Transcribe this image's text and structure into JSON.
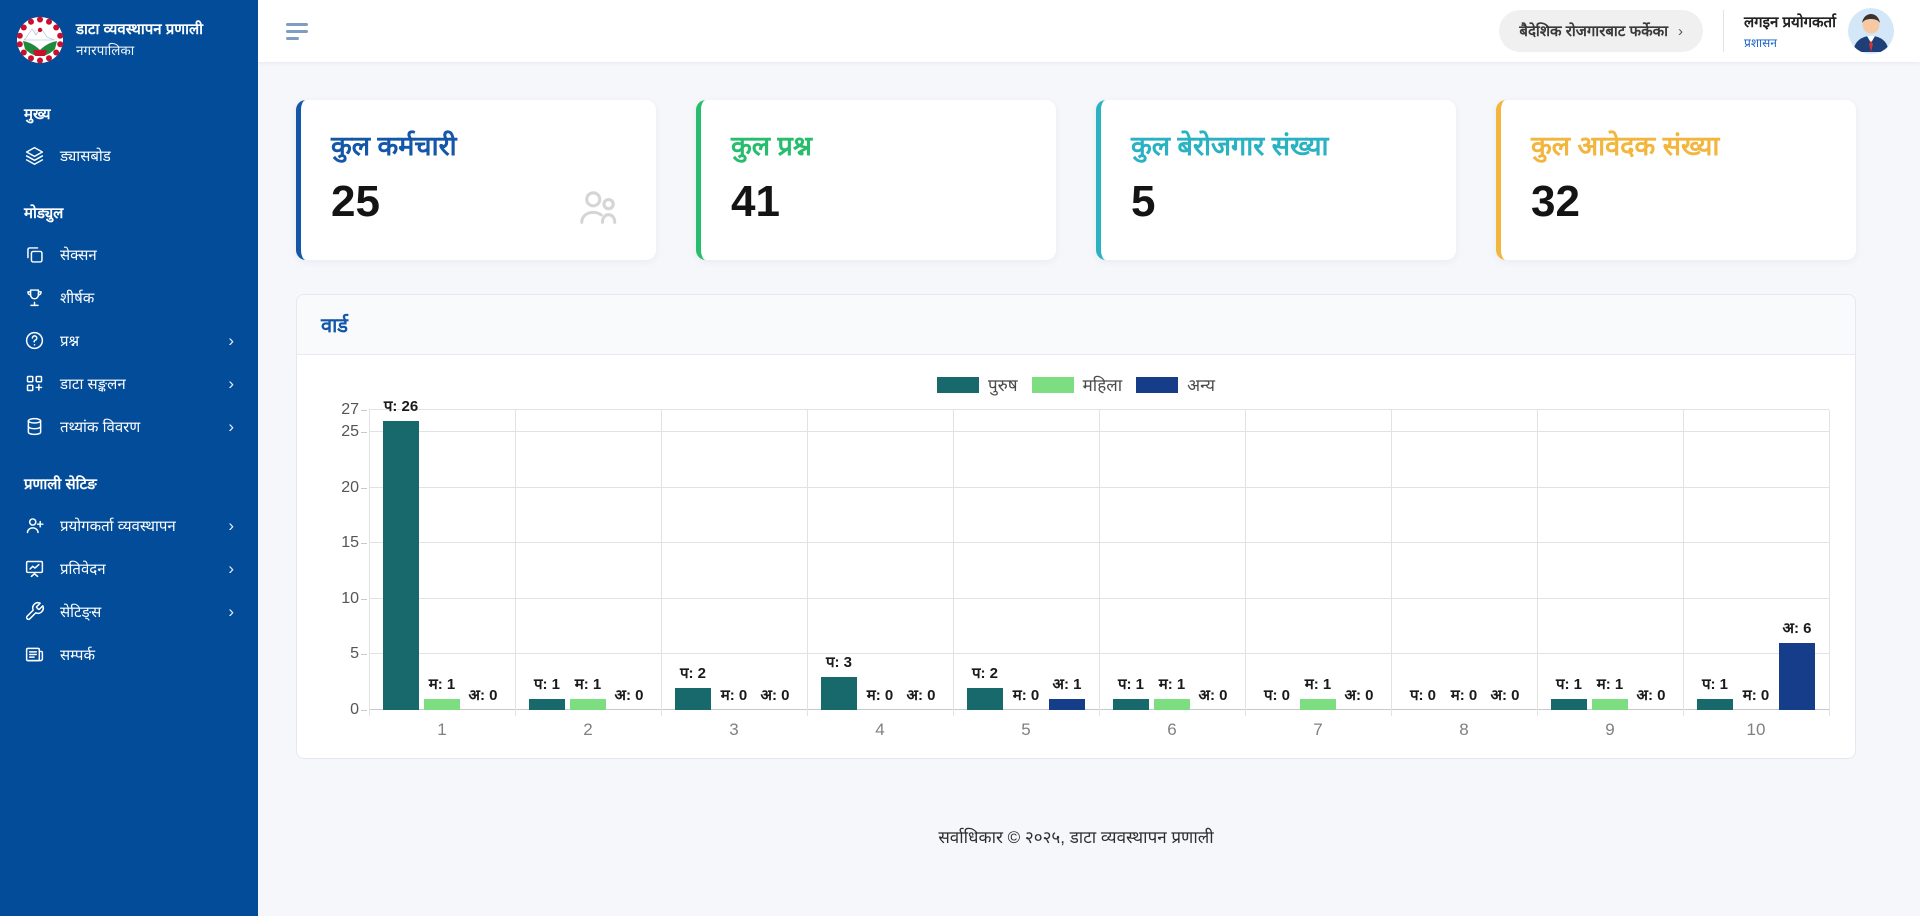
{
  "app": {
    "title": "डाटा व्यवस्थापन प्रणाली",
    "subtitle": "नगरपालिका"
  },
  "sidebar": {
    "sections": [
      {
        "header": "मुख्य",
        "items": [
          {
            "label": "ड्यासबोड",
            "icon": "layers-icon",
            "chevron": false
          }
        ]
      },
      {
        "header": "मोड्युल",
        "items": [
          {
            "label": "सेक्सन",
            "icon": "sections-copy-icon",
            "chevron": false
          },
          {
            "label": "शीर्षक",
            "icon": "trophy-icon",
            "chevron": false
          },
          {
            "label": "प्रश्न",
            "icon": "question-circle-icon",
            "chevron": true
          },
          {
            "label": "डाटा सङ्कलन",
            "icon": "grid-plus-icon",
            "chevron": true
          },
          {
            "label": "तथ्यांक विवरण",
            "icon": "database-icon",
            "chevron": true
          }
        ]
      },
      {
        "header": "प्रणाली सेटिङ",
        "items": [
          {
            "label": "प्रयोगकर्ता व्यवस्थापन",
            "icon": "user-plus-icon",
            "chevron": true
          },
          {
            "label": "प्रतिवेदन",
            "icon": "report-chart-icon",
            "chevron": true
          },
          {
            "label": "सेटिङ्स",
            "icon": "wrench-icon",
            "chevron": true
          },
          {
            "label": "सम्पर्क",
            "icon": "newspaper-icon",
            "chevron": false
          }
        ]
      }
    ]
  },
  "topbar": {
    "returnee_button": "बैदेशिक रोजगारबाट फर्केका",
    "chevron": "›",
    "user": {
      "name": "लगइन प्रयोगकर्ता",
      "role": "प्रशासन"
    }
  },
  "stats": [
    {
      "title": "कुल कर्मचारी",
      "value": "25",
      "color": "#1456a8",
      "icon": "users-icon"
    },
    {
      "title": "कुल प्रश्न",
      "value": "41",
      "color": "#27bd6d",
      "icon": ""
    },
    {
      "title": "कुल बेरोजगार संख्या",
      "value": "5",
      "color": "#2ab2c3",
      "icon": ""
    },
    {
      "title": "कुल आवेदक संख्या",
      "value": "32",
      "color": "#f2b63e",
      "icon": ""
    }
  ],
  "chart_card": {
    "title": "वार्ड"
  },
  "chart_data": {
    "type": "bar",
    "title": "वार्ड",
    "categories": [
      "1",
      "2",
      "3",
      "4",
      "5",
      "6",
      "7",
      "8",
      "9",
      "10"
    ],
    "series": [
      {
        "name": "पुरुष",
        "key": "male",
        "prefix": "प",
        "color": "#17696c",
        "values": [
          26,
          1,
          2,
          3,
          2,
          1,
          0,
          0,
          1,
          1
        ]
      },
      {
        "name": "महिला",
        "key": "female",
        "prefix": "म",
        "color": "#7ddd81",
        "values": [
          1,
          1,
          0,
          0,
          0,
          1,
          1,
          0,
          1,
          0
        ]
      },
      {
        "name": "अन्य",
        "key": "other",
        "prefix": "अ",
        "color": "#153d8a",
        "values": [
          0,
          0,
          0,
          0,
          1,
          0,
          0,
          0,
          0,
          6
        ]
      }
    ],
    "yticks": [
      0,
      5,
      10,
      15,
      20,
      25,
      27
    ],
    "ylim": [
      0,
      27
    ],
    "grid": true,
    "legend_position": "top",
    "label_format": "prefix: value"
  },
  "footer": {
    "copyright": "सर्वाधिकार © २०२५, डाटा व्यवस्थापन प्रणाली"
  }
}
